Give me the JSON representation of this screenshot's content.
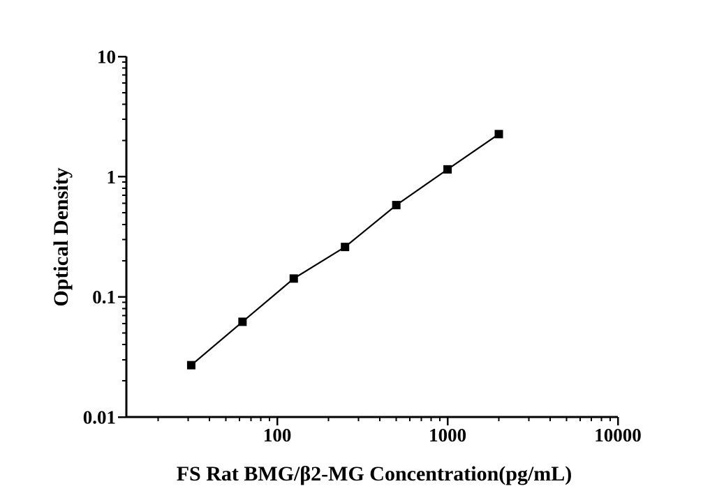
{
  "figure": {
    "background_color": "#ffffff",
    "ink_color": "#000000"
  },
  "chart_data": {
    "type": "line",
    "title": "",
    "xlabel": "FS Rat BMG/β2-MG Concentration(pg/mL)",
    "ylabel": "Optical Density",
    "x_scale": "log",
    "y_scale": "log",
    "xlim": [
      13,
      10000
    ],
    "ylim": [
      0.01,
      10
    ],
    "x_tick_values": [
      100,
      1000,
      10000
    ],
    "x_tick_labels": [
      "100",
      "1000",
      "10000"
    ],
    "y_tick_values": [
      10,
      1,
      0.1,
      0.01
    ],
    "y_tick_labels": [
      "10",
      "1",
      "0.1",
      "0.01"
    ],
    "grid": false,
    "legend": "none",
    "frame": "open-left-bottom",
    "tick_direction": "out",
    "series": [
      {
        "name": "standard-curve",
        "marker": "filled-square",
        "line_style": "solid",
        "color": "#000000",
        "x": [
          31.25,
          62.5,
          125,
          250,
          500,
          1000,
          2000
        ],
        "y": [
          0.027,
          0.062,
          0.142,
          0.26,
          0.58,
          1.15,
          2.26
        ]
      }
    ]
  }
}
